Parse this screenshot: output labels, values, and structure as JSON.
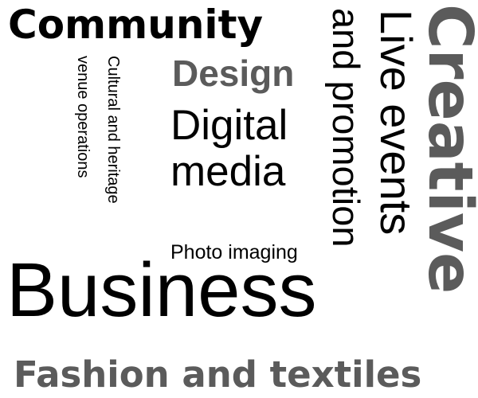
{
  "colors": {
    "black": "#000000",
    "gray": "#5b5b5b"
  },
  "words": {
    "community": "Community",
    "design": "Design",
    "digital": "Digital",
    "media": "media",
    "cultural_heritage": "Cultural and heritage",
    "venue_operations": "venue operations",
    "photo_imaging": "Photo imaging",
    "business": "Business",
    "and_promotion": "and promotion",
    "live_events": "Live events",
    "creative": "Creative",
    "fashion_textiles": "Fashion and textiles"
  }
}
